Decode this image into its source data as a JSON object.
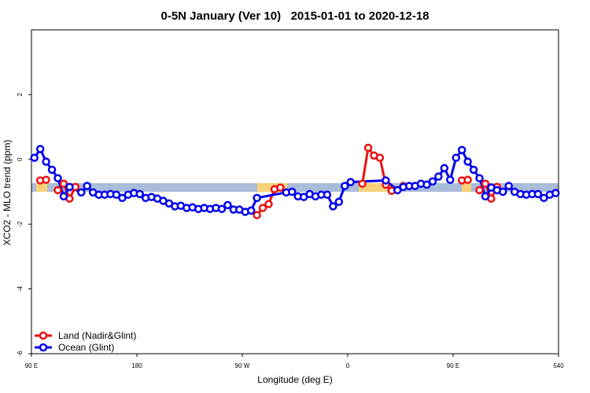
{
  "chart_data": {
    "type": "line",
    "title": "0-5N January (Ver 10)   2015-01-01 to 2020-12-18",
    "x_label": "Longitude (deg E)",
    "y_label": "XCO2 - MLO trend (ppm)",
    "xlim": [
      90,
      540
    ],
    "xticks": [
      {
        "value": 90,
        "label": "90 E"
      },
      180,
      {
        "value": 270,
        "label": "90 W"
      },
      {
        "value": 360,
        "label": "0"
      },
      {
        "value": 450,
        "label": "90 E"
      },
      540
    ],
    "ylim": [
      -6,
      4
    ],
    "yticks": [
      -6,
      -4,
      -2,
      0,
      2
    ],
    "legend": "bottom-left",
    "series": [
      {
        "name": "Land (Nadir&Glint)",
        "color": "#ee1111",
        "x": [
          97.5,
          102.5,
          107.5,
          112.5,
          117.5,
          122.5,
          127.5,
          132.5,
          282.5,
          287.5,
          292.5,
          297.5,
          302.5,
          307.5,
          372.5,
          377.5,
          382.5,
          387.5,
          392.5,
          397.5,
          402.5,
          407.5,
          412.5,
          457.5,
          462.5,
          467.5,
          472.5,
          477.5,
          482.5,
          487.5
        ],
        "values": [
          -0.65,
          -0.63,
          null,
          -0.95,
          -0.75,
          -1.21,
          -0.85,
          null,
          -1.72,
          -1.5,
          -1.38,
          -0.92,
          -0.87,
          null,
          -0.75,
          0.36,
          0.12,
          0.05,
          -0.78,
          -0.97,
          null,
          -0.82,
          null,
          -0.65,
          -0.63,
          null,
          -0.95,
          -0.75,
          -1.21,
          -0.85
        ]
      },
      {
        "name": "Ocean (Glint)",
        "color": "#0000ee",
        "x": [
          92.5,
          97.5,
          102.5,
          107.5,
          112.5,
          117.5,
          122.5,
          132.5,
          137.5,
          142.5,
          147.5,
          152.5,
          157.5,
          162.5,
          167.5,
          172.5,
          177.5,
          182.5,
          187.5,
          192.5,
          197.5,
          202.5,
          207.5,
          212.5,
          217.5,
          222.5,
          227.5,
          232.5,
          237.5,
          242.5,
          247.5,
          252.5,
          257.5,
          262.5,
          267.5,
          272.5,
          277.5,
          282.5,
          307.5,
          312.5,
          317.5,
          322.5,
          327.5,
          332.5,
          337.5,
          342.5,
          347.5,
          352.5,
          357.5,
          362.5,
          392.5,
          402.5,
          407.5,
          412.5,
          417.5,
          422.5,
          427.5,
          432.5,
          437.5,
          442.5,
          447.5,
          452.5,
          457.5,
          462.5,
          467.5,
          472.5,
          477.5,
          482.5,
          487.5,
          492.5,
          497.5,
          502.5,
          507.5,
          512.5,
          517.5,
          522.5,
          527.5,
          532.5,
          537.5
        ],
        "values": [
          0.05,
          0.32,
          -0.07,
          -0.32,
          -0.58,
          -1.14,
          -0.85,
          -1.02,
          -0.82,
          -1.02,
          -1.09,
          -1.09,
          -1.07,
          -1.09,
          -1.19,
          -1.09,
          -1.04,
          -1.07,
          -1.19,
          -1.16,
          -1.21,
          -1.28,
          -1.36,
          -1.45,
          -1.43,
          -1.5,
          -1.48,
          -1.53,
          -1.5,
          -1.53,
          -1.5,
          -1.53,
          -1.41,
          -1.55,
          -1.55,
          -1.62,
          -1.58,
          -1.19,
          -1.02,
          -1.0,
          -1.14,
          -1.16,
          -1.07,
          -1.14,
          -1.09,
          -1.09,
          -1.45,
          -1.31,
          -0.82,
          -0.7,
          -0.65,
          -0.95,
          -0.85,
          -0.82,
          -0.82,
          -0.75,
          -0.78,
          -0.68,
          -0.53,
          -0.27,
          -0.63,
          0.05,
          0.29,
          -0.07,
          -0.32,
          -0.58,
          -1.14,
          -0.87,
          -0.95,
          -1.0,
          -0.82,
          -1.0,
          -1.07,
          -1.09,
          -1.07,
          -1.07,
          -1.19,
          -1.09,
          -1.04
        ]
      }
    ]
  }
}
